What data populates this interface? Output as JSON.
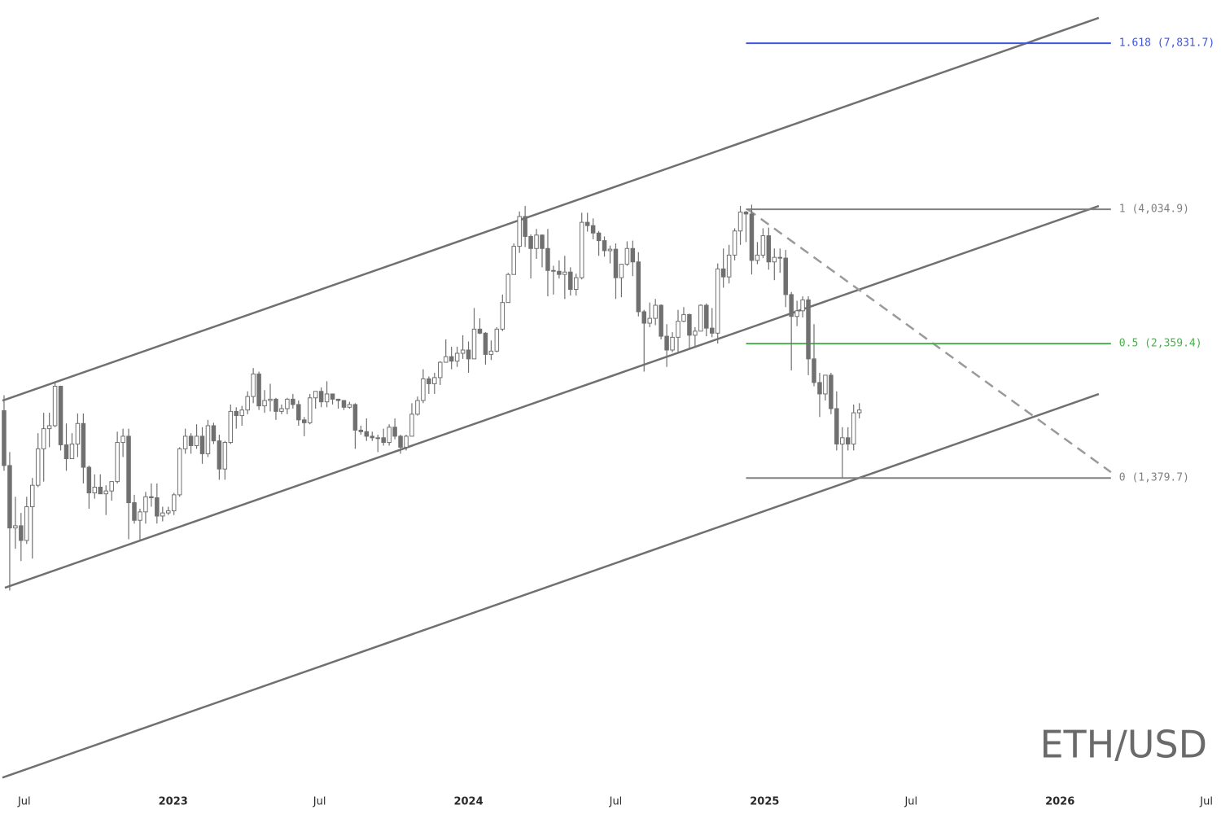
{
  "chart_data": {
    "type": "candlestick",
    "watermark": "ETH/USD",
    "log_scale": true,
    "xlim": [
      "2022-06-01",
      "2026-07-19"
    ],
    "ylim": [
      404,
      9307
    ],
    "xticks": [
      {
        "value": "2022-07-01",
        "label": "Jul"
      },
      {
        "value": "2023-01-01",
        "label": "2023"
      },
      {
        "value": "2023-07-01",
        "label": "Jul"
      },
      {
        "value": "2024-01-01",
        "label": "2024"
      },
      {
        "value": "2024-07-01",
        "label": "Jul"
      },
      {
        "value": "2025-01-01",
        "label": "2025"
      },
      {
        "value": "2025-07-01",
        "label": "Jul"
      },
      {
        "value": "2026-01-01",
        "label": "2026"
      },
      {
        "value": "2026-07-01",
        "label": "Jul"
      }
    ],
    "up_color": "#ffffff",
    "down_color": "#707070",
    "wick_color": "#707070",
    "x": [
      "2022-06-06",
      "2022-06-13",
      "2022-06-20",
      "2022-06-27",
      "2022-07-04",
      "2022-07-11",
      "2022-07-18",
      "2022-07-25",
      "2022-08-01",
      "2022-08-08",
      "2022-08-15",
      "2022-08-22",
      "2022-08-29",
      "2022-09-05",
      "2022-09-12",
      "2022-09-19",
      "2022-09-26",
      "2022-10-03",
      "2022-10-10",
      "2022-10-17",
      "2022-10-24",
      "2022-10-31",
      "2022-11-07",
      "2022-11-14",
      "2022-11-21",
      "2022-11-28",
      "2022-12-05",
      "2022-12-12",
      "2022-12-19",
      "2022-12-26",
      "2023-01-02",
      "2023-01-09",
      "2023-01-16",
      "2023-01-23",
      "2023-01-30",
      "2023-02-06",
      "2023-02-13",
      "2023-02-20",
      "2023-02-27",
      "2023-03-06",
      "2023-03-13",
      "2023-03-20",
      "2023-03-27",
      "2023-04-03",
      "2023-04-10",
      "2023-04-17",
      "2023-04-24",
      "2023-05-01",
      "2023-05-08",
      "2023-05-15",
      "2023-05-22",
      "2023-05-29",
      "2023-06-05",
      "2023-06-12",
      "2023-06-19",
      "2023-06-26",
      "2023-07-03",
      "2023-07-10",
      "2023-07-17",
      "2023-07-24",
      "2023-07-31",
      "2023-08-07",
      "2023-08-14",
      "2023-08-21",
      "2023-08-28",
      "2023-09-04",
      "2023-09-11",
      "2023-09-18",
      "2023-09-25",
      "2023-10-02",
      "2023-10-09",
      "2023-10-16",
      "2023-10-23",
      "2023-10-30",
      "2023-11-06",
      "2023-11-13",
      "2023-11-20",
      "2023-11-27",
      "2023-12-04",
      "2023-12-11",
      "2023-12-18",
      "2023-12-25",
      "2024-01-01",
      "2024-01-08",
      "2024-01-15",
      "2024-01-22",
      "2024-01-29",
      "2024-02-05",
      "2024-02-12",
      "2024-02-19",
      "2024-02-26",
      "2024-03-04",
      "2024-03-11",
      "2024-03-18",
      "2024-03-25",
      "2024-04-01",
      "2024-04-08",
      "2024-04-15",
      "2024-04-22",
      "2024-04-29",
      "2024-05-06",
      "2024-05-13",
      "2024-05-20",
      "2024-05-27",
      "2024-06-03",
      "2024-06-10",
      "2024-06-17",
      "2024-06-24",
      "2024-07-01",
      "2024-07-08",
      "2024-07-15",
      "2024-07-22",
      "2024-07-29",
      "2024-08-05",
      "2024-08-12",
      "2024-08-19",
      "2024-08-26",
      "2024-09-02",
      "2024-09-09",
      "2024-09-16",
      "2024-09-23",
      "2024-09-30",
      "2024-10-07",
      "2024-10-14",
      "2024-10-21",
      "2024-10-28",
      "2024-11-04",
      "2024-11-11",
      "2024-11-18",
      "2024-11-25",
      "2024-12-02",
      "2024-12-09",
      "2024-12-16",
      "2024-12-23",
      "2024-12-30",
      "2025-01-06",
      "2025-01-13",
      "2025-01-20",
      "2025-01-27",
      "2025-02-03",
      "2025-02-10",
      "2025-02-17",
      "2025-02-24",
      "2025-03-03",
      "2025-03-10",
      "2025-03-17",
      "2025-03-24",
      "2025-03-31",
      "2025-04-07",
      "2025-04-14",
      "2025-04-21",
      "2025-04-28"
    ],
    "ohlc": [
      [
        1805,
        1920,
        1420,
        1450
      ],
      [
        1450,
        1530,
        880,
        1130
      ],
      [
        1130,
        1280,
        1040,
        1140
      ],
      [
        1140,
        1200,
        990,
        1075
      ],
      [
        1075,
        1280,
        1060,
        1230
      ],
      [
        1230,
        1380,
        1000,
        1340
      ],
      [
        1340,
        1650,
        1330,
        1550
      ],
      [
        1550,
        1790,
        1360,
        1680
      ],
      [
        1680,
        1790,
        1560,
        1700
      ],
      [
        1700,
        2030,
        1690,
        1990
      ],
      [
        1990,
        1995,
        1540,
        1575
      ],
      [
        1575,
        1715,
        1420,
        1490
      ],
      [
        1490,
        1650,
        1500,
        1580
      ],
      [
        1580,
        1785,
        1500,
        1715
      ],
      [
        1715,
        1785,
        1350,
        1440
      ],
      [
        1440,
        1450,
        1220,
        1300
      ],
      [
        1300,
        1400,
        1270,
        1330
      ],
      [
        1330,
        1400,
        1300,
        1295
      ],
      [
        1295,
        1340,
        1190,
        1310
      ],
      [
        1310,
        1360,
        1260,
        1360
      ],
      [
        1360,
        1660,
        1350,
        1590
      ],
      [
        1590,
        1680,
        1500,
        1630
      ],
      [
        1630,
        1680,
        1080,
        1250
      ],
      [
        1250,
        1290,
        1150,
        1165
      ],
      [
        1165,
        1220,
        1075,
        1205
      ],
      [
        1205,
        1305,
        1150,
        1280
      ],
      [
        1280,
        1350,
        1230,
        1275
      ],
      [
        1275,
        1350,
        1150,
        1185
      ],
      [
        1185,
        1230,
        1160,
        1200
      ],
      [
        1200,
        1230,
        1190,
        1210
      ],
      [
        1210,
        1300,
        1190,
        1290
      ],
      [
        1290,
        1560,
        1280,
        1550
      ],
      [
        1550,
        1680,
        1520,
        1630
      ],
      [
        1630,
        1650,
        1520,
        1570
      ],
      [
        1570,
        1710,
        1550,
        1630
      ],
      [
        1630,
        1690,
        1460,
        1520
      ],
      [
        1520,
        1740,
        1500,
        1700
      ],
      [
        1700,
        1720,
        1580,
        1600
      ],
      [
        1600,
        1640,
        1370,
        1430
      ],
      [
        1430,
        1600,
        1370,
        1590
      ],
      [
        1590,
        1850,
        1580,
        1800
      ],
      [
        1800,
        1830,
        1680,
        1770
      ],
      [
        1770,
        1840,
        1700,
        1810
      ],
      [
        1810,
        1950,
        1780,
        1910
      ],
      [
        1910,
        2140,
        1860,
        2090
      ],
      [
        2090,
        2110,
        1810,
        1840
      ],
      [
        1840,
        1960,
        1790,
        1880
      ],
      [
        1880,
        2010,
        1800,
        1890
      ],
      [
        1890,
        1900,
        1740,
        1800
      ],
      [
        1800,
        1850,
        1780,
        1820
      ],
      [
        1820,
        1900,
        1780,
        1890
      ],
      [
        1890,
        1930,
        1820,
        1850
      ],
      [
        1850,
        1880,
        1700,
        1740
      ],
      [
        1740,
        1760,
        1630,
        1720
      ],
      [
        1720,
        1930,
        1710,
        1900
      ],
      [
        1900,
        1950,
        1820,
        1950
      ],
      [
        1950,
        1980,
        1830,
        1870
      ],
      [
        1870,
        2030,
        1830,
        1930
      ],
      [
        1930,
        1930,
        1850,
        1890
      ],
      [
        1890,
        1890,
        1820,
        1880
      ],
      [
        1880,
        1880,
        1810,
        1830
      ],
      [
        1830,
        1870,
        1820,
        1850
      ],
      [
        1850,
        1860,
        1550,
        1670
      ],
      [
        1670,
        1700,
        1640,
        1660
      ],
      [
        1660,
        1750,
        1600,
        1630
      ],
      [
        1630,
        1660,
        1600,
        1620
      ],
      [
        1620,
        1640,
        1530,
        1620
      ],
      [
        1620,
        1680,
        1570,
        1590
      ],
      [
        1590,
        1710,
        1570,
        1690
      ],
      [
        1690,
        1750,
        1610,
        1630
      ],
      [
        1630,
        1640,
        1520,
        1560
      ],
      [
        1560,
        1640,
        1540,
        1630
      ],
      [
        1630,
        1860,
        1630,
        1780
      ],
      [
        1780,
        1910,
        1770,
        1880
      ],
      [
        1880,
        2130,
        1860,
        2050
      ],
      [
        2050,
        2070,
        1930,
        2010
      ],
      [
        2010,
        2100,
        1930,
        2060
      ],
      [
        2060,
        2200,
        2000,
        2190
      ],
      [
        2190,
        2400,
        2190,
        2240
      ],
      [
        2240,
        2330,
        2130,
        2200
      ],
      [
        2200,
        2330,
        2150,
        2270
      ],
      [
        2270,
        2440,
        2220,
        2300
      ],
      [
        2300,
        2380,
        2100,
        2220
      ],
      [
        2220,
        2720,
        2220,
        2500
      ],
      [
        2500,
        2610,
        2450,
        2460
      ],
      [
        2460,
        2470,
        2170,
        2260
      ],
      [
        2260,
        2390,
        2210,
        2290
      ],
      [
        2290,
        2520,
        2280,
        2500
      ],
      [
        2500,
        2870,
        2480,
        2780
      ],
      [
        2780,
        3130,
        2860,
        3110
      ],
      [
        3110,
        3520,
        3110,
        3480
      ],
      [
        3480,
        4000,
        3390,
        3920
      ],
      [
        3920,
        4090,
        3470,
        3620
      ],
      [
        3620,
        3650,
        3060,
        3450
      ],
      [
        3450,
        3730,
        3310,
        3640
      ],
      [
        3640,
        3650,
        3200,
        3450
      ],
      [
        3450,
        3730,
        2850,
        3160
      ],
      [
        3160,
        3220,
        2870,
        3150
      ],
      [
        3150,
        3290,
        3060,
        3110
      ],
      [
        3110,
        3350,
        2820,
        3140
      ],
      [
        3140,
        3200,
        2860,
        2930
      ],
      [
        2930,
        3120,
        2860,
        3070
      ],
      [
        3070,
        3980,
        3050,
        3830
      ],
      [
        3830,
        3980,
        3690,
        3780
      ],
      [
        3780,
        3890,
        3580,
        3670
      ],
      [
        3670,
        3700,
        3350,
        3560
      ],
      [
        3560,
        3620,
        3340,
        3420
      ],
      [
        3420,
        3490,
        3250,
        3440
      ],
      [
        3440,
        3520,
        2820,
        3070
      ],
      [
        3070,
        3240,
        2840,
        3240
      ],
      [
        3240,
        3550,
        3220,
        3450
      ],
      [
        3450,
        3560,
        3090,
        3270
      ],
      [
        3270,
        3400,
        2630,
        2680
      ],
      [
        2680,
        2700,
        2110,
        2560
      ],
      [
        2560,
        2780,
        2520,
        2610
      ],
      [
        2610,
        2820,
        2540,
        2750
      ],
      [
        2750,
        2760,
        2400,
        2430
      ],
      [
        2430,
        2550,
        2150,
        2300
      ],
      [
        2300,
        2470,
        2280,
        2420
      ],
      [
        2420,
        2700,
        2280,
        2580
      ],
      [
        2580,
        2730,
        2570,
        2650
      ],
      [
        2650,
        2660,
        2310,
        2440
      ],
      [
        2440,
        2520,
        2330,
        2480
      ],
      [
        2480,
        2760,
        2480,
        2750
      ],
      [
        2750,
        2770,
        2430,
        2510
      ],
      [
        2510,
        2720,
        2420,
        2460
      ],
      [
        2460,
        3250,
        2360,
        3180
      ],
      [
        3180,
        3450,
        2950,
        3080
      ],
      [
        3080,
        3500,
        3000,
        3360
      ],
      [
        3360,
        3740,
        3290,
        3700
      ],
      [
        3700,
        4090,
        3500,
        3990
      ],
      [
        3990,
        4010,
        3540,
        3960
      ],
      [
        3960,
        4110,
        3110,
        3290
      ],
      [
        3290,
        3540,
        3240,
        3360
      ],
      [
        3360,
        3740,
        3320,
        3630
      ],
      [
        3630,
        3750,
        3170,
        3270
      ],
      [
        3270,
        3450,
        3040,
        3330
      ],
      [
        3330,
        3450,
        3130,
        3320
      ],
      [
        3320,
        3430,
        2730,
        2870
      ],
      [
        2870,
        2900,
        2120,
        2630
      ],
      [
        2630,
        2800,
        2530,
        2690
      ],
      [
        2690,
        2850,
        2620,
        2810
      ],
      [
        2810,
        2850,
        2080,
        2220
      ],
      [
        2220,
        2550,
        1990,
        2020
      ],
      [
        2020,
        2100,
        1760,
        1930
      ],
      [
        1930,
        2080,
        1880,
        2080
      ],
      [
        2080,
        2100,
        1780,
        1820
      ],
      [
        1820,
        1950,
        1540,
        1580
      ],
      [
        1580,
        1690,
        1380,
        1620
      ],
      [
        1620,
        1690,
        1540,
        1580
      ],
      [
        1580,
        1850,
        1540,
        1790
      ],
      [
        1790,
        1860,
        1750,
        1810
      ]
    ],
    "trendlines": [
      {
        "x": [
          "2022-06-04",
          "2026-02-18"
        ],
        "y": [
          1879,
          8665
        ],
        "color": "#707070"
      },
      {
        "x": [
          "2022-06-07",
          "2026-02-18"
        ],
        "y": [
          890,
          4088
        ],
        "color": "#707070"
      },
      {
        "x": [
          "2022-06-04",
          "2026-02-18"
        ],
        "y": [
          417,
          1929
        ],
        "color": "#707070"
      },
      {
        "x": [
          "2024-12-11",
          "2026-03-05"
        ],
        "y": [
          4034.9,
          1412
        ],
        "color": "#9a9a9a",
        "dashed": true
      }
    ],
    "fib_levels": {
      "x": [
        "2024-12-09",
        "2026-03-05"
      ],
      "levels": [
        {
          "value": 7831.7,
          "label": "1.618 (7,831.7)",
          "color": "#3d55e0"
        },
        {
          "value": 4034.9,
          "label": "1 (4,034.9)",
          "color": "#808080"
        },
        {
          "value": 2359.4,
          "label": "0.5 (2,359.4)",
          "color": "#4caf50"
        },
        {
          "value": 1379.7,
          "label": "0 (1,379.7)",
          "color": "#808080"
        }
      ]
    }
  }
}
